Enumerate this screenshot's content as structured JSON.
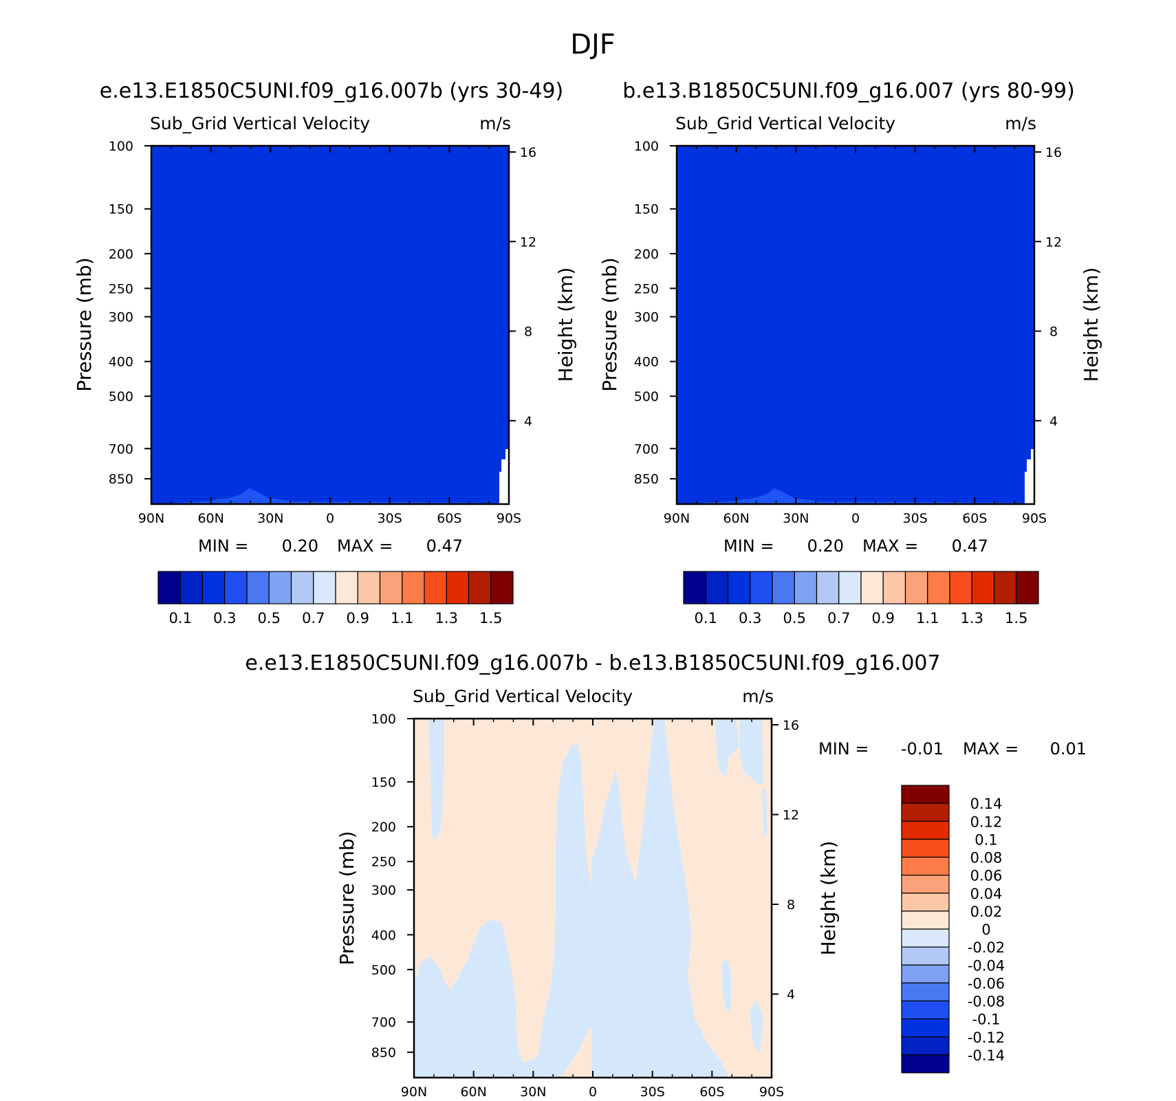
{
  "page_title": "DJF",
  "colors": {
    "case_fill": "#0033e0",
    "case_fill_light": "#1e55f4",
    "diff_pos": "#fde8d8",
    "diff_neg": "#d5e8fb"
  },
  "panels": [
    {
      "title": "e.e13.E1850C5UNI.f09_g16.007b (yrs 30-49)",
      "variable": "Sub_Grid Vertical Velocity",
      "units": "m/s",
      "min_label": "MIN =",
      "min_value": "0.20",
      "max_label": "MAX =",
      "max_value": "0.47"
    },
    {
      "title": "b.e13.B1850C5UNI.f09_g16.007 (yrs 80-99)",
      "variable": "Sub_Grid Vertical Velocity",
      "units": "m/s",
      "min_label": "MIN =",
      "min_value": "0.20",
      "max_label": "MAX =",
      "max_value": "0.47"
    },
    {
      "title": "e.e13.E1850C5UNI.f09_g16.007b - b.e13.B1850C5UNI.f09_g16.007",
      "variable": "Sub_Grid Vertical Velocity",
      "units": "m/s",
      "min_label": "MIN =",
      "min_value": "-0.01",
      "max_label": "MAX =",
      "max_value": "0.01"
    }
  ],
  "chart_data": {
    "type": "heatmap",
    "x_ticks": [
      "90N",
      "60N",
      "30N",
      "0",
      "30S",
      "60S",
      "90S"
    ],
    "x_values": [
      90,
      60,
      30,
      0,
      -30,
      -60,
      -90
    ],
    "xlim": [
      90,
      -90
    ],
    "y_label": "Pressure (mb)",
    "y_ticks": [
      "100",
      "150",
      "200",
      "250",
      "300",
      "400",
      "500",
      "700",
      "850"
    ],
    "y_values": [
      100,
      150,
      200,
      250,
      300,
      400,
      500,
      700,
      850
    ],
    "ylim": [
      100,
      1000
    ],
    "y_scale": "log",
    "y2_label": "Height (km)",
    "y2_ticks": [
      "16",
      "12",
      "8",
      "4"
    ],
    "y2_values": [
      16,
      12,
      8,
      4
    ],
    "case_colorbar": {
      "orientation": "horizontal",
      "levels": [
        "0.1",
        "0.3",
        "0.5",
        "0.7",
        "0.9",
        "1.1",
        "1.3",
        "1.5"
      ],
      "colors": [
        "#00008c",
        "#0022c4",
        "#0033e0",
        "#1f4ff2",
        "#4a78f2",
        "#7fa1f2",
        "#b2c8f5",
        "#d9e8fb",
        "#fde8d8",
        "#fcc6a8",
        "#fca27a",
        "#fc7c48",
        "#f84e1c",
        "#e22c00",
        "#b21e00",
        "#800000"
      ]
    },
    "diff_colorbar": {
      "orientation": "vertical",
      "levels": [
        "0.14",
        "0.12",
        "0.1",
        "0.08",
        "0.06",
        "0.04",
        "0.02",
        "0",
        "-0.02",
        "-0.04",
        "-0.06",
        "-0.08",
        "-0.1",
        "-0.12",
        "-0.14"
      ],
      "colors": [
        "#800000",
        "#b21e00",
        "#e22c00",
        "#f84e1c",
        "#fc7c48",
        "#fca27a",
        "#fcc6a8",
        "#fde8d8",
        "#d9e8fb",
        "#b2c8f5",
        "#7fa1f2",
        "#4a78f2",
        "#1f4ff2",
        "#0033e0",
        "#0022c4",
        "#00008c"
      ]
    },
    "case_field": {
      "dominant_level_range": [
        0.3,
        0.5
      ],
      "near_surface_bump_lat": [
        60,
        20
      ],
      "missing_region": {
        "lat_from": -85,
        "pressure_from": 650
      }
    },
    "diff_field": {
      "background_range": [
        0,
        0.02
      ],
      "negative_range": [
        -0.02,
        0
      ],
      "negative_regions": [
        {
          "lat_range": [
            88,
            72
          ],
          "pressure_range": [
            100,
            200
          ]
        },
        {
          "lat_range": [
            85,
            35
          ],
          "pressure_range": [
            390,
            1000
          ]
        },
        {
          "lat_range": [
            30,
            0
          ],
          "pressure_range": [
            100,
            1000
          ]
        },
        {
          "lat_range": [
            0,
            -15
          ],
          "pressure_range": [
            600,
            1000
          ]
        },
        {
          "lat_range": [
            -15,
            -55
          ],
          "pressure_range": [
            100,
            1000
          ]
        },
        {
          "lat_range": [
            -68,
            -85
          ],
          "pressure_range": [
            100,
            140
          ]
        }
      ]
    }
  }
}
